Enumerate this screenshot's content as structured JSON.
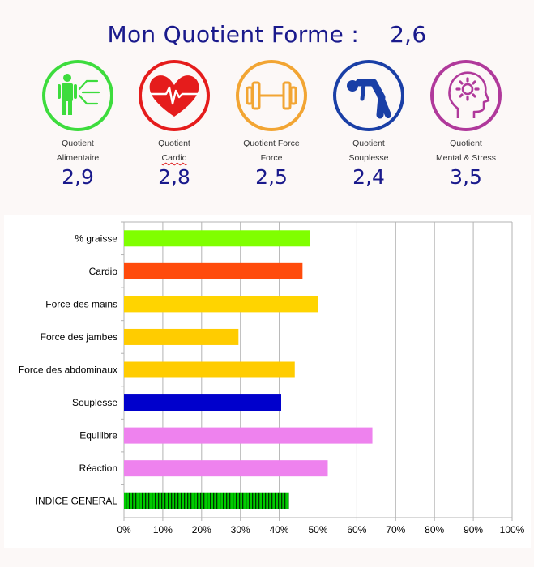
{
  "header": {
    "title": "Mon Quotient Forme :",
    "score": "2,6"
  },
  "quotients": [
    {
      "line1": "Quotient",
      "line2": "Alimentaire",
      "value": "2,9",
      "color": "#3ddc3d",
      "icon": "person-nutrition-icon"
    },
    {
      "line1": "Quotient",
      "line2": "Cardio",
      "value": "2,8",
      "color": "#e51c1c",
      "icon": "heart-pulse-icon"
    },
    {
      "line1": "Quotient Force",
      "line2": "Force",
      "value": "2,5",
      "color": "#f2a533",
      "icon": "dumbbell-icon"
    },
    {
      "line1": "Quotient",
      "line2": "Souplesse",
      "value": "2,4",
      "color": "#1a3fa6",
      "icon": "stretching-person-icon"
    },
    {
      "line1": "Quotient",
      "line2": "Mental & Stress",
      "value": "3,5",
      "color": "#b0399b",
      "icon": "head-gear-icon"
    }
  ],
  "chart_data": {
    "type": "bar",
    "orientation": "horizontal",
    "categories": [
      "% graisse",
      "Cardio",
      "Force des mains",
      "Force des jambes",
      "Force des abdominaux",
      "Souplesse",
      "Equilibre",
      "Réaction",
      "INDICE GENERAL"
    ],
    "values": [
      48,
      46,
      50,
      29.5,
      44,
      40.5,
      64,
      52.5,
      42.5
    ],
    "colors": [
      "#80ff00",
      "#ff4b0c",
      "#ffd400",
      "#ffcc00",
      "#ffcc00",
      "#0000cc",
      "#ee82ee",
      "#ee82ee",
      "#00cc00"
    ],
    "xlim": [
      0,
      100
    ],
    "xticks": [
      "0%",
      "10%",
      "20%",
      "30%",
      "40%",
      "50%",
      "60%",
      "70%",
      "80%",
      "90%",
      "100%"
    ],
    "grid": true,
    "title": "",
    "xlabel": "",
    "ylabel": ""
  }
}
